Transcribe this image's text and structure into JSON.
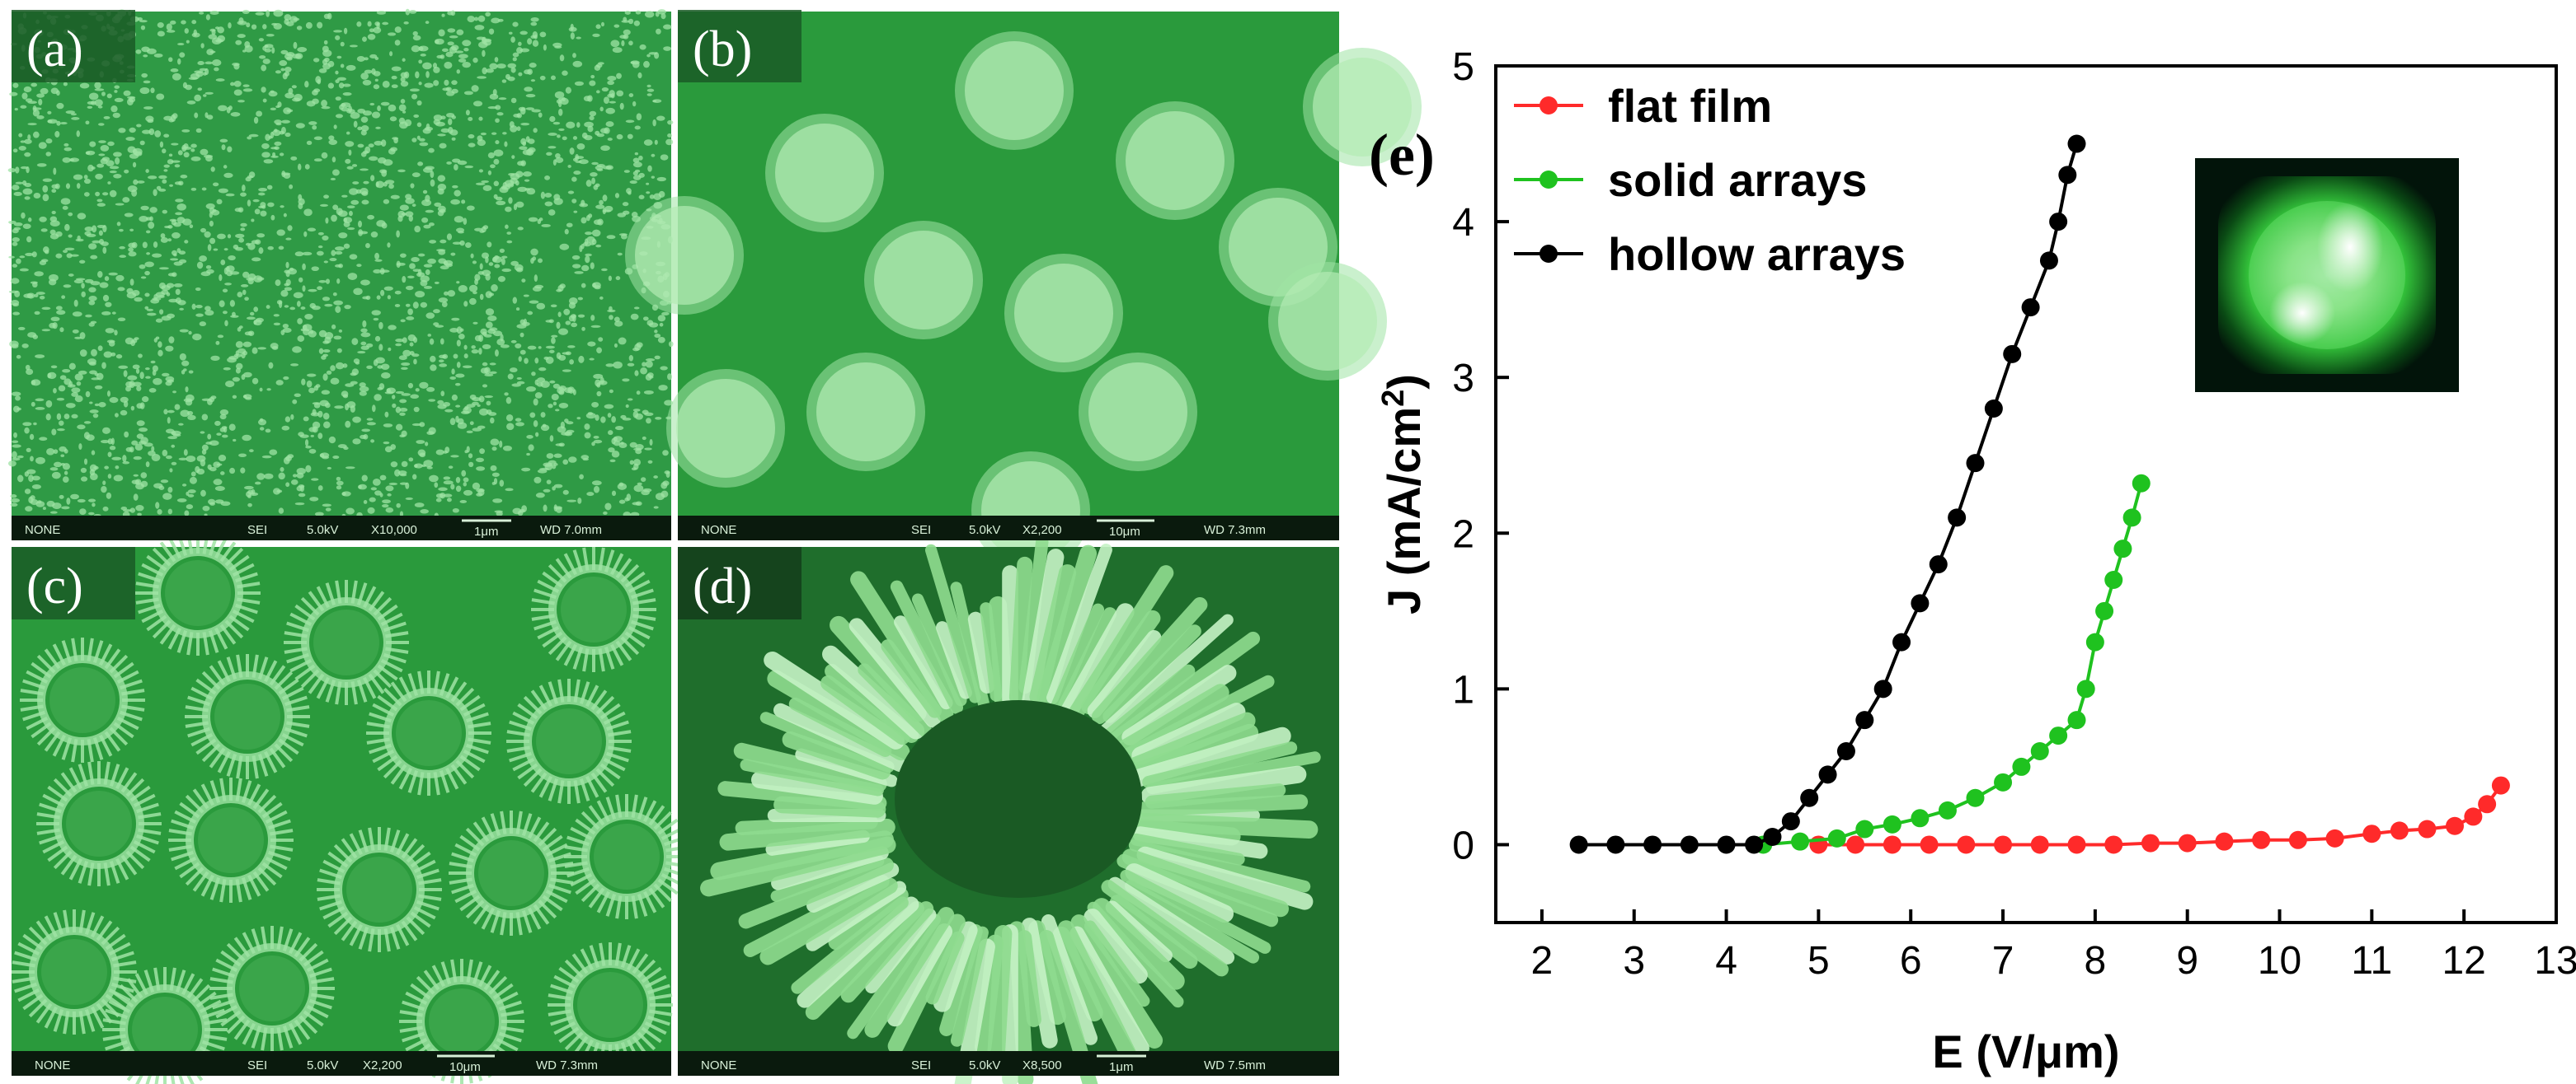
{
  "sem_panels": [
    {
      "label": "(a)",
      "texture": "dense",
      "footer": {
        "signal": "NONE",
        "mode": "SEI",
        "voltage": "5.0kV",
        "magnification": "X10,000",
        "scalebar": "1μm",
        "wd": "WD 7.0mm"
      }
    },
    {
      "label": "(b)",
      "texture": "solid-arrays",
      "footer": {
        "signal": "NONE",
        "mode": "SEI",
        "voltage": "5.0kV",
        "magnification": "X2,200",
        "scalebar": "10μm",
        "wd": "WD 7.3mm"
      }
    },
    {
      "label": "(c)",
      "texture": "hollow-arrays",
      "footer": {
        "signal": "NONE",
        "mode": "SEI",
        "voltage": "5.0kV",
        "magnification": "X2,200",
        "scalebar": "10μm",
        "wd": "WD 7.3mm"
      }
    },
    {
      "label": "(d)",
      "texture": "hollow-ring-closeup",
      "footer": {
        "signal": "NONE",
        "mode": "SEI",
        "voltage": "5.0kV",
        "magnification": "X8,500",
        "scalebar": "1μm",
        "wd": "WD 7.5mm"
      }
    }
  ],
  "colors": {
    "sem_background": "#2f9a45",
    "sem_feature": "#9fe3a4",
    "black_series": "#000000",
    "green_series": "#1fc21f",
    "red_series": "#ff2a2a"
  },
  "chart_data": {
    "type": "line",
    "panel_label": "(e)",
    "title": "",
    "xlabel": "E (V/μm)",
    "ylabel_main": "J (mA/cm",
    "ylabel_sup": "2",
    "ylabel_close": ")",
    "xlim": [
      1.5,
      13
    ],
    "ylim": [
      -0.5,
      5
    ],
    "xticks": [
      2,
      3,
      4,
      5,
      6,
      7,
      8,
      9,
      10,
      11,
      12,
      13
    ],
    "yticks": [
      0,
      1,
      2,
      3,
      4,
      5
    ],
    "grid": false,
    "legend_position": "top-left",
    "inset": "emission spot image (top-right)",
    "series": [
      {
        "name": "flat film",
        "color": "#ff2a2a",
        "points": [
          [
            5.0,
            0
          ],
          [
            5.4,
            0
          ],
          [
            5.8,
            0
          ],
          [
            6.2,
            0
          ],
          [
            6.6,
            0
          ],
          [
            7.0,
            0
          ],
          [
            7.4,
            0
          ],
          [
            7.8,
            0
          ],
          [
            8.2,
            0
          ],
          [
            8.6,
            0.01
          ],
          [
            9.0,
            0.01
          ],
          [
            9.4,
            0.02
          ],
          [
            9.8,
            0.03
          ],
          [
            10.2,
            0.03
          ],
          [
            10.6,
            0.04
          ],
          [
            11.0,
            0.07
          ],
          [
            11.3,
            0.09
          ],
          [
            11.6,
            0.1
          ],
          [
            11.9,
            0.12
          ],
          [
            12.1,
            0.18
          ],
          [
            12.25,
            0.26
          ],
          [
            12.4,
            0.38
          ]
        ]
      },
      {
        "name": "solid arrays",
        "color": "#1fc21f",
        "points": [
          [
            4.4,
            0
          ],
          [
            4.8,
            0.02
          ],
          [
            5.2,
            0.04
          ],
          [
            5.5,
            0.1
          ],
          [
            5.8,
            0.13
          ],
          [
            6.1,
            0.17
          ],
          [
            6.4,
            0.22
          ],
          [
            6.7,
            0.3
          ],
          [
            7.0,
            0.4
          ],
          [
            7.2,
            0.5
          ],
          [
            7.4,
            0.6
          ],
          [
            7.6,
            0.7
          ],
          [
            7.8,
            0.8
          ],
          [
            7.9,
            1.0
          ],
          [
            8.0,
            1.3
          ],
          [
            8.1,
            1.5
          ],
          [
            8.2,
            1.7
          ],
          [
            8.3,
            1.9
          ],
          [
            8.4,
            2.1
          ],
          [
            8.5,
            2.32
          ]
        ]
      },
      {
        "name": "hollow arrays",
        "color": "#000000",
        "points": [
          [
            2.4,
            0
          ],
          [
            2.8,
            0
          ],
          [
            3.2,
            0
          ],
          [
            3.6,
            0
          ],
          [
            4.0,
            0
          ],
          [
            4.3,
            0
          ],
          [
            4.5,
            0.05
          ],
          [
            4.7,
            0.15
          ],
          [
            4.9,
            0.3
          ],
          [
            5.1,
            0.45
          ],
          [
            5.3,
            0.6
          ],
          [
            5.5,
            0.8
          ],
          [
            5.7,
            1.0
          ],
          [
            5.9,
            1.3
          ],
          [
            6.1,
            1.55
          ],
          [
            6.3,
            1.8
          ],
          [
            6.5,
            2.1
          ],
          [
            6.7,
            2.45
          ],
          [
            6.9,
            2.8
          ],
          [
            7.1,
            3.15
          ],
          [
            7.3,
            3.45
          ],
          [
            7.5,
            3.75
          ],
          [
            7.6,
            4.0
          ],
          [
            7.7,
            4.3
          ],
          [
            7.8,
            4.5
          ]
        ]
      }
    ]
  }
}
